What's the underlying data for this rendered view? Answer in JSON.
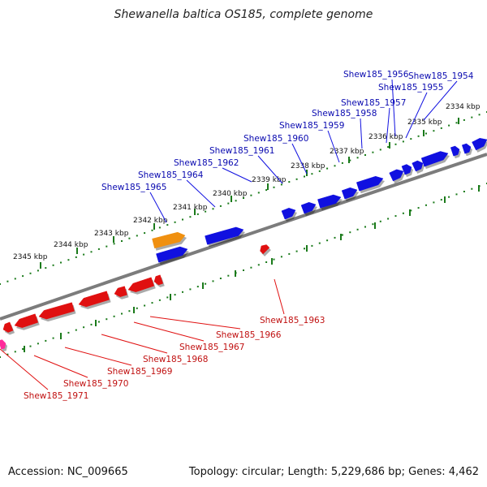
{
  "title": "Shewanella baltica OS185, complete genome",
  "footer": {
    "accession": "Accession: NC_009665",
    "stats": "Topology: circular; Length: 5,229,686 bp; Genes: 4,462"
  },
  "colors": {
    "forward_gene": "#1010e0",
    "reverse_gene": "#e01010",
    "rna_gene": "#f09010",
    "other_gene": "#ff2a9a",
    "backbone": "#808080",
    "tick": "#1a7a1a",
    "forward_label": "#0a0ab0",
    "reverse_label": "#c01010"
  },
  "scale_ticks": [
    "2334 kbp",
    "2335 kbp",
    "2336 kbp",
    "2337 kbp",
    "2338 kbp",
    "2339 kbp",
    "2340 kbp",
    "2341 kbp",
    "2342 kbp",
    "2343 kbp",
    "2344 kbp",
    "2345 kbp"
  ],
  "forward_genes": [
    "Shew185_1954",
    "Shew185_1955",
    "Shew185_1956",
    "Shew185_1957",
    "Shew185_1958",
    "Shew185_1959",
    "Shew185_1960",
    "Shew185_1961",
    "Shew185_1962",
    "Shew185_1964",
    "Shew185_1965"
  ],
  "reverse_genes": [
    "Shew185_1963",
    "Shew185_1966",
    "Shew185_1967",
    "Shew185_1968",
    "Shew185_1969",
    "Shew185_1970",
    "Shew185_1971"
  ]
}
